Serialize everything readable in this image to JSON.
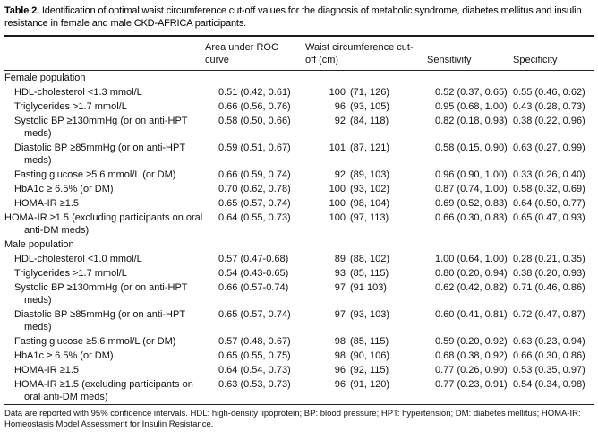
{
  "colors": {
    "background": "#ffffff",
    "text": "#111111",
    "rule": "#1b1b1b"
  },
  "table": {
    "number_label": "Table 2.",
    "caption": "Identification of optimal waist circumference cut-off values for the diagnosis of metabolic syndrome, diabetes mellitus and insulin resistance in female and male CKD-AFRICA participants.",
    "columns": [
      "Area under ROC curve",
      "Waist circumference cut-off (cm)",
      "Sensitivity",
      "Specificity"
    ],
    "sections": [
      {
        "header": "Female population",
        "rows": [
          {
            "label": "HDL-cholesterol <1.3 mmol/L",
            "auc": "0.51 (0.42, 0.61)",
            "waist": "100",
            "waist_ci": "(71, 126)",
            "sensitivity": "0.52 (0.37, 0.65)",
            "specificity": "0.55 (0.46, 0.62)"
          },
          {
            "label": "Triglycerides >1.7 mmol/L",
            "auc": "0.66 (0.56, 0.76)",
            "waist": "96",
            "waist_ci": "(93, 105)",
            "sensitivity": "0.95 (0.68, 1.00)",
            "specificity": "0.43 (0.28, 0.73)"
          },
          {
            "label": "Systolic BP ≥130mmHg (or on anti-HPT meds)",
            "auc": "0.58 (0.50, 0.66)",
            "waist": "92",
            "waist_ci": "(84, 118)",
            "sensitivity": "0.82 (0.18, 0.93)",
            "specificity": "0.38 (0.22, 0.96)"
          },
          {
            "label": "Diastolic BP ≥85mmHg (or on anti-HPT meds)",
            "auc": "0.59 (0.51, 0.67)",
            "waist": "101",
            "waist_ci": "(87, 121)",
            "sensitivity": "0.58 (0.15, 0.90)",
            "specificity": "0.63 (0.27, 0.99)"
          },
          {
            "label": "Fasting glucose ≥5.6 mmol/L (or DM)",
            "auc": "0.66 (0.59, 0.74)",
            "waist": "92",
            "waist_ci": "(89, 103)",
            "sensitivity": "0.96 (0.90, 1.00)",
            "specificity": "0.33 (0.26, 0.40)"
          },
          {
            "label": "HbA1c ≥ 6.5% (or DM)",
            "auc": "0.70 (0.62, 0.78)",
            "waist": "100",
            "waist_ci": "(93, 102)",
            "sensitivity": "0.87 (0.74, 1.00)",
            "specificity": "0.58 (0.32, 0.69)"
          },
          {
            "label": "HOMA-IR ≥1.5",
            "auc": "0.65 (0.57, 0.74)",
            "waist": "100",
            "waist_ci": "(98, 104)",
            "sensitivity": "0.69 (0.52, 0.83)",
            "specificity": "0.64 (0.50, 0.77)"
          },
          {
            "label": "HOMA-IR ≥1.5 (excluding participants on oral anti-DM meds)",
            "flush_left": true,
            "auc": "0.64 (0.55, 0.73)",
            "waist": "100",
            "waist_ci": "(97, 113)",
            "sensitivity": "0.66 (0.30, 0.83)",
            "specificity": "0.65 (0.47, 0.93)"
          }
        ]
      },
      {
        "header": "Male population",
        "rows": [
          {
            "label": "HDL-cholesterol <1.0 mmol/L",
            "auc": "0.57 (0.47-0.68)",
            "waist": "89",
            "waist_ci": "(88, 102)",
            "sensitivity": "1.00 (0.64, 1.00)",
            "specificity": "0.28 (0.21, 0.35)"
          },
          {
            "label": "Triglycerides >1.7 mmol/L",
            "auc": "0.54 (0.43-0.65)",
            "waist": "93",
            "waist_ci": "(85, 115)",
            "sensitivity": "0.80 (0.20, 0.94)",
            "specificity": "0.38 (0.20, 0.93)"
          },
          {
            "label": "Systolic BP ≥130mmHg (or on anti-HPT meds)",
            "auc": "0.66 (0.57-0.74)",
            "waist": "97",
            "waist_ci": "(91 103)",
            "sensitivity": "0.62 (0.42, 0.82)",
            "specificity": "0.71 (0.46, 0.86)"
          },
          {
            "label": "Diastolic BP ≥85mmHg (or on anti-HPT meds)",
            "auc": "0.65 (0.57, 0.74)",
            "waist": "97",
            "waist_ci": "(93, 103)",
            "sensitivity": "0.60 (0.41, 0.81)",
            "specificity": "0.72 (0.47, 0.87)"
          },
          {
            "label": "Fasting glucose ≥5.6 mmol/L (or DM)",
            "auc": "0.57 (0.48, 0.67)",
            "waist": "98",
            "waist_ci": "(85, 115)",
            "sensitivity": "0.59 (0.20, 0.92)",
            "specificity": "0.63 (0.23, 0.94)"
          },
          {
            "label": "HbA1c ≥ 6.5% (or DM)",
            "auc": "0.65 (0.55, 0.75)",
            "waist": "98",
            "waist_ci": "(90, 106)",
            "sensitivity": "0.68 (0.38, 0.92)",
            "specificity": "0.66 (0.30, 0.86)"
          },
          {
            "label": "HOMA-IR ≥1.5",
            "auc": "0.64 (0.54, 0.73)",
            "waist": "96",
            "waist_ci": "(92, 115)",
            "sensitivity": "0.77 (0.26, 0.90)",
            "specificity": "0.53 (0.35, 0.97)"
          },
          {
            "label": "HOMA-IR ≥1.5 (excluding participants on oral anti-DM meds)",
            "auc": "0.63 (0.53, 0.73)",
            "waist": "96",
            "waist_ci": "(91, 120)",
            "sensitivity": "0.77 (0.23, 0.91)",
            "specificity": "0.54 (0.34, 0.98)"
          }
        ]
      }
    ],
    "footnote": "Data are reported with 95% confidence intervals. HDL: high-density lipoprotein; BP: blood pressure; HPT: hypertension; DM: diabetes mellitus; HOMA-IR: Homeostasis Model Assessment for Insulin Resistance."
  }
}
